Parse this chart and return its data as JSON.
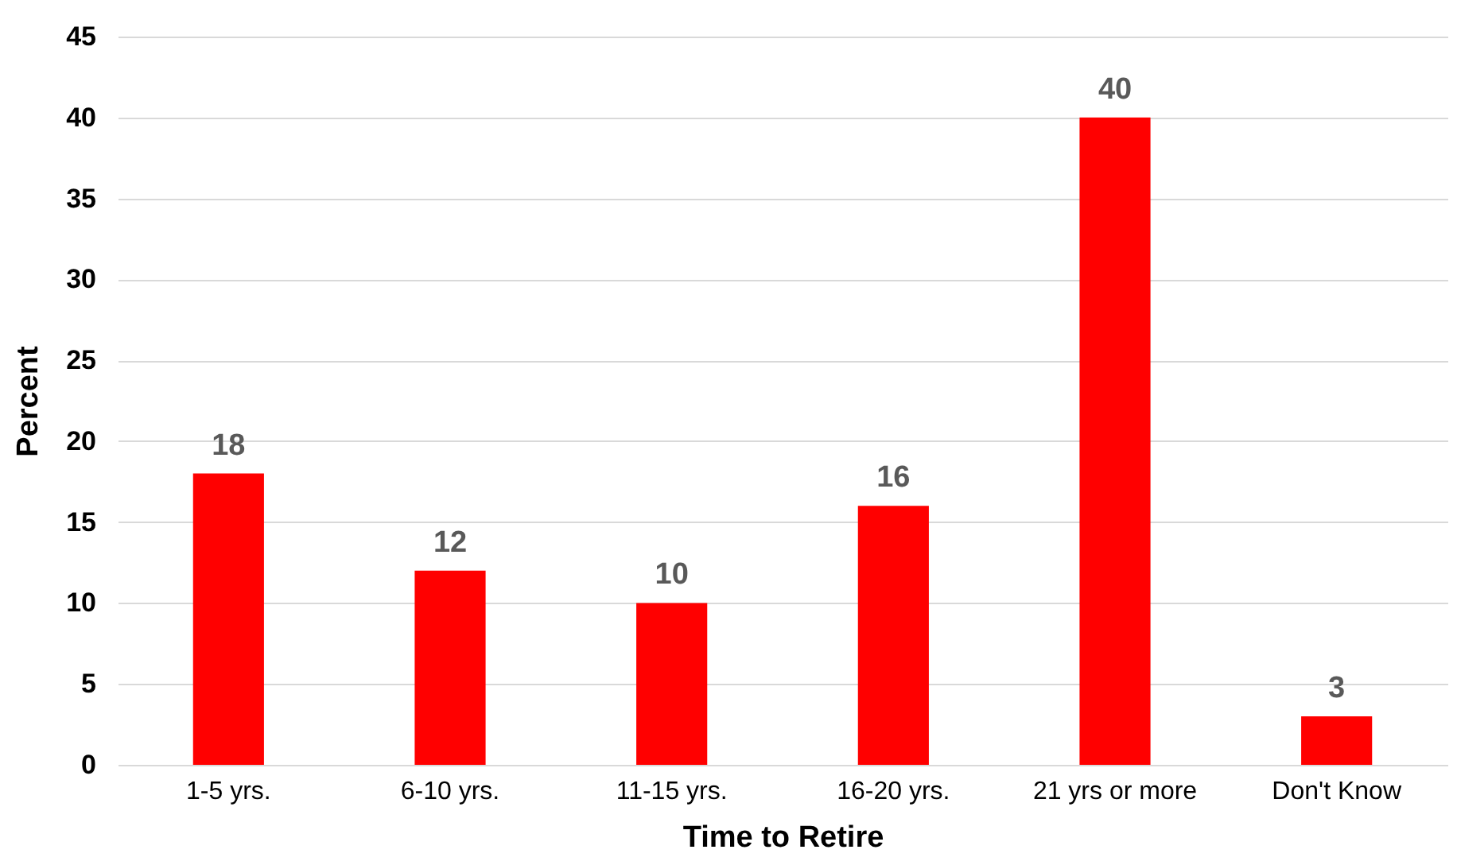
{
  "chart_data": {
    "type": "bar",
    "xlabel": "Time to Retire",
    "ylabel": "Percent",
    "categories": [
      "1-5 yrs.",
      "6-10 yrs.",
      "11-15 yrs.",
      "16-20 yrs.",
      "21 yrs or more",
      "Don't Know"
    ],
    "values": [
      18,
      12,
      10,
      16,
      40,
      3
    ],
    "color": "#ff0000",
    "ylim": [
      0,
      45
    ],
    "yticks": [
      0,
      5,
      10,
      15,
      20,
      25,
      30,
      35,
      40,
      45
    ],
    "grid": "y",
    "data_labels": true
  }
}
